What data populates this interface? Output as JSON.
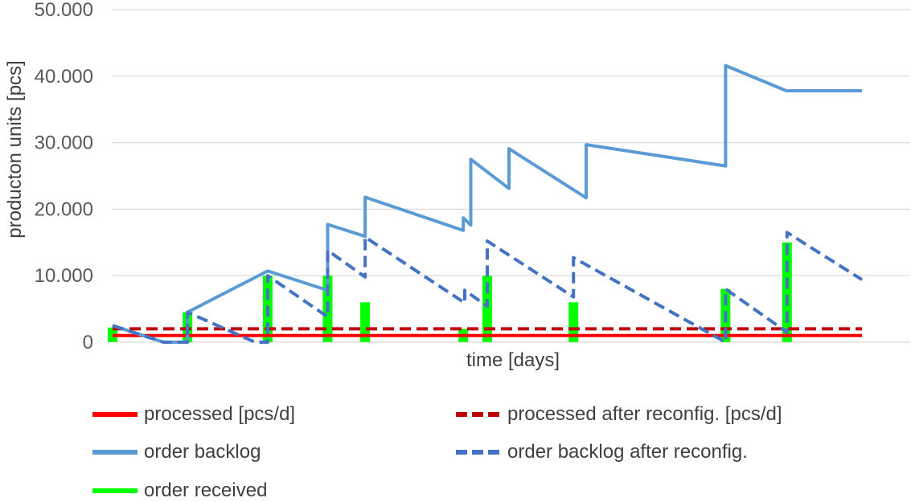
{
  "chart_data": {
    "type": "line",
    "title": "",
    "xlabel": "time [days]",
    "ylabel": "producton units [pcs]",
    "ylim": [
      0,
      50000
    ],
    "yticks": [
      0,
      10000,
      20000,
      30000,
      40000,
      50000
    ],
    "ytick_labels": [
      "0",
      "10.000",
      "20.000",
      "30.000",
      "40.000",
      "50.000"
    ],
    "xlim": [
      0,
      1000
    ],
    "grid": true,
    "legend_position": "bottom",
    "series": [
      {
        "name": "processed [pcs/d]",
        "kind": "line",
        "color": "#ff0000",
        "dash": false,
        "x": [
          0,
          75,
          75,
          1000
        ],
        "y": [
          1000,
          1000,
          1000,
          1000
        ]
      },
      {
        "name": "processed after reconfig. [pcs/d]",
        "kind": "line",
        "color": "#c00000",
        "dash": true,
        "x": [
          0,
          75,
          75,
          1000
        ],
        "y": [
          2000,
          2000,
          2000,
          2000
        ]
      },
      {
        "name": "order backlog",
        "kind": "line",
        "color": "#5b9bd5",
        "dash": false,
        "x": [
          0,
          68,
          100,
          100,
          207,
          207,
          287,
          287,
          337,
          337,
          468,
          468,
          478,
          478,
          529,
          529,
          632,
          632,
          818,
          818,
          899,
          899,
          1000
        ],
        "y": [
          2500,
          0,
          0,
          4500,
          10700,
          10700,
          7800,
          17700,
          15900,
          21800,
          16800,
          18700,
          17600,
          27500,
          23100,
          29100,
          21700,
          29700,
          26500,
          41600,
          37800,
          37800,
          37800
        ]
      },
      {
        "name": "order backlog after reconfig.",
        "kind": "line",
        "color": "#4472c4",
        "dash": true,
        "x": [
          0,
          68,
          100,
          100,
          190,
          207,
          207,
          287,
          287,
          337,
          337,
          470,
          470,
          500,
          500,
          615,
          615,
          818,
          818,
          900,
          900,
          1000
        ],
        "y": [
          2500,
          0,
          0,
          4500,
          0,
          0,
          10000,
          3800,
          13800,
          9800,
          15800,
          5900,
          7800,
          5400,
          15200,
          6800,
          12700,
          0,
          8000,
          1500,
          16500,
          9400
        ]
      },
      {
        "name": "order received",
        "kind": "bar",
        "color": "#00ff00",
        "x": [
          0,
          100,
          207,
          287,
          337,
          468,
          500,
          615,
          818,
          900
        ],
        "y": [
          2200,
          4500,
          10000,
          10000,
          6000,
          2000,
          10000,
          6000,
          8000,
          15000
        ]
      }
    ]
  }
}
